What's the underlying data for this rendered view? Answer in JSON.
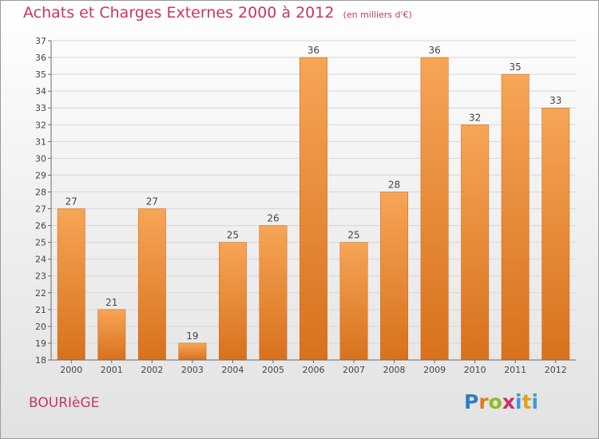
{
  "header": {
    "title": "Achats et Charges Externes 2000 à 2012",
    "unit": "(en milliers d'€)"
  },
  "footer": {
    "place": "BOURIèGE",
    "logo": [
      "P",
      "r",
      "o",
      "x",
      "i",
      "t",
      "i"
    ]
  },
  "colors": {
    "title": "#c8365f",
    "bar_top": "#f6a556",
    "bar_bottom": "#d8711c",
    "grid": "#d6d6d6",
    "axis": "#6b6b6b"
  },
  "chart_data": {
    "type": "bar",
    "title": "Achats et Charges Externes 2000 à 2012",
    "xlabel": "",
    "ylabel": "",
    "categories": [
      "2000",
      "2001",
      "2002",
      "2003",
      "2004",
      "2005",
      "2006",
      "2007",
      "2008",
      "2009",
      "2010",
      "2011",
      "2012"
    ],
    "values": [
      27,
      21,
      27,
      19,
      25,
      26,
      36,
      25,
      28,
      36,
      32,
      35,
      33
    ],
    "ylim": [
      18,
      37
    ],
    "yticks": [
      18,
      19,
      20,
      21,
      22,
      23,
      24,
      25,
      26,
      27,
      28,
      29,
      30,
      31,
      32,
      33,
      34,
      35,
      36,
      37
    ],
    "grid": true,
    "legend": "none"
  }
}
